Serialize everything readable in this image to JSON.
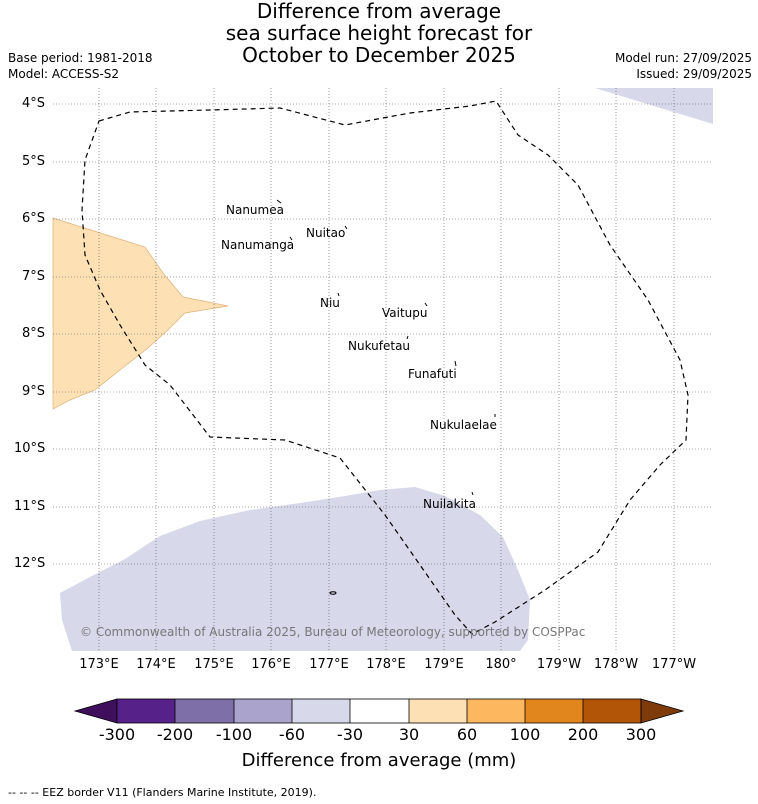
{
  "title": {
    "line1": "Difference from average",
    "line2": "sea surface height forecast for",
    "line3": "October to December 2025"
  },
  "meta": {
    "base_period": "Base period: 1981-2018",
    "model": "Model: ACCESS-S2",
    "model_run": "Model run: 27/09/2025",
    "issued": "Issued: 29/09/2025"
  },
  "lat_labels": [
    "4°S",
    "5°S",
    "6°S",
    "7°S",
    "8°S",
    "9°S",
    "10°S",
    "11°S",
    "12°S"
  ],
  "lon_labels": [
    "173°E",
    "174°E",
    "175°E",
    "176°E",
    "177°E",
    "178°E",
    "179°E",
    "180°",
    "179°W",
    "178°W",
    "177°W"
  ],
  "islands": [
    "Nanumea",
    "Nuitao",
    "Nanumanga",
    "Niu",
    "Vaitupu",
    "Nukufetau",
    "Funafuti",
    "Nukulaelae",
    "Nuilakita"
  ],
  "credit": "© Commonwealth of Australia 2025, Bureau of Meteorology, supported by COSPPac",
  "colorbar": {
    "ticks": [
      "-300",
      "-200",
      "-100",
      "-60",
      "-30",
      "30",
      "60",
      "100",
      "200",
      "300"
    ],
    "colors": [
      "#3f0f5c",
      "#56228a",
      "#7e6fa8",
      "#aaa4cc",
      "#d7d8ea",
      "#ffffff",
      "#fde0b4",
      "#fdb75f",
      "#e1861c",
      "#b25506",
      "#7f3a0a"
    ],
    "title": "Difference from average (mm)"
  },
  "footer": "--  --  -- EEZ border V11 (Flanders Marine Institute, 2019).",
  "colors": {
    "negative_fill": "#d7d8ea",
    "positive_fill": "#fde0b4",
    "grid": "#555555"
  }
}
